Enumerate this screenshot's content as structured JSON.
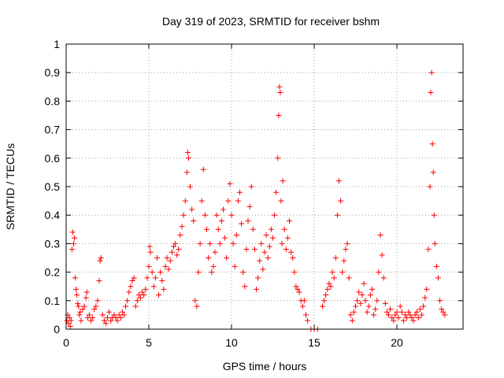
{
  "chart_data": {
    "type": "scatter",
    "title": "Day 319 of 2023, SRMTID for receiver bshm",
    "xlabel": "GPS time / hours",
    "ylabel": "SRMTID / TECUs",
    "xlim": [
      0,
      24
    ],
    "ylim": [
      0,
      1
    ],
    "xticks": [
      "0",
      "5",
      "10",
      "15",
      "20"
    ],
    "yticks": [
      "0",
      "0.1",
      "0.2",
      "0.3",
      "0.4",
      "0.5",
      "0.6",
      "0.7",
      "0.8",
      "0.9",
      "1"
    ],
    "grid": true,
    "marker": "+",
    "color": "#ff0000",
    "series": [
      {
        "name": "SRMTID",
        "points": [
          [
            0.05,
            0.03
          ],
          [
            0.1,
            0.05
          ],
          [
            0.15,
            0.02
          ],
          [
            0.2,
            0.04
          ],
          [
            0.25,
            0.01
          ],
          [
            0.3,
            0.03
          ],
          [
            0.35,
            0.28
          ],
          [
            0.4,
            0.34
          ],
          [
            0.45,
            0.3
          ],
          [
            0.5,
            0.32
          ],
          [
            0.55,
            0.18
          ],
          [
            0.6,
            0.14
          ],
          [
            0.65,
            0.12
          ],
          [
            0.7,
            0.09
          ],
          [
            0.75,
            0.08
          ],
          [
            0.8,
            0.05
          ],
          [
            0.85,
            0.06
          ],
          [
            0.9,
            0.03
          ],
          [
            1.0,
            0.07
          ],
          [
            1.1,
            0.08
          ],
          [
            1.2,
            0.11
          ],
          [
            1.25,
            0.13
          ],
          [
            1.3,
            0.04
          ],
          [
            1.4,
            0.05
          ],
          [
            1.5,
            0.03
          ],
          [
            1.6,
            0.04
          ],
          [
            1.7,
            0.07
          ],
          [
            1.8,
            0.08
          ],
          [
            1.9,
            0.1
          ],
          [
            2.0,
            0.17
          ],
          [
            2.05,
            0.24
          ],
          [
            2.1,
            0.25
          ],
          [
            2.2,
            0.05
          ],
          [
            2.3,
            0.03
          ],
          [
            2.4,
            0.02
          ],
          [
            2.5,
            0.04
          ],
          [
            2.6,
            0.06
          ],
          [
            2.7,
            0.03
          ],
          [
            2.8,
            0.04
          ],
          [
            2.9,
            0.05
          ],
          [
            3.0,
            0.04
          ],
          [
            3.1,
            0.03
          ],
          [
            3.2,
            0.05
          ],
          [
            3.3,
            0.04
          ],
          [
            3.4,
            0.06
          ],
          [
            3.5,
            0.05
          ],
          [
            3.6,
            0.08
          ],
          [
            3.7,
            0.1
          ],
          [
            3.8,
            0.13
          ],
          [
            3.9,
            0.15
          ],
          [
            4.0,
            0.17
          ],
          [
            4.1,
            0.18
          ],
          [
            4.2,
            0.08
          ],
          [
            4.3,
            0.1
          ],
          [
            4.4,
            0.12
          ],
          [
            4.5,
            0.11
          ],
          [
            4.6,
            0.13
          ],
          [
            4.7,
            0.12
          ],
          [
            4.8,
            0.14
          ],
          [
            4.9,
            0.18
          ],
          [
            5.0,
            0.22
          ],
          [
            5.05,
            0.29
          ],
          [
            5.1,
            0.27
          ],
          [
            5.2,
            0.2
          ],
          [
            5.3,
            0.15
          ],
          [
            5.4,
            0.18
          ],
          [
            5.5,
            0.25
          ],
          [
            5.6,
            0.12
          ],
          [
            5.7,
            0.2
          ],
          [
            5.8,
            0.17
          ],
          [
            5.9,
            0.14
          ],
          [
            6.0,
            0.22
          ],
          [
            6.1,
            0.25
          ],
          [
            6.2,
            0.21
          ],
          [
            6.3,
            0.24
          ],
          [
            6.4,
            0.27
          ],
          [
            6.5,
            0.29
          ],
          [
            6.6,
            0.3
          ],
          [
            6.7,
            0.26
          ],
          [
            6.8,
            0.28
          ],
          [
            6.9,
            0.33
          ],
          [
            7.0,
            0.36
          ],
          [
            7.1,
            0.4
          ],
          [
            7.2,
            0.45
          ],
          [
            7.3,
            0.55
          ],
          [
            7.35,
            0.62
          ],
          [
            7.4,
            0.6
          ],
          [
            7.5,
            0.5
          ],
          [
            7.6,
            0.42
          ],
          [
            7.7,
            0.38
          ],
          [
            7.8,
            0.1
          ],
          [
            7.9,
            0.08
          ],
          [
            8.0,
            0.2
          ],
          [
            8.1,
            0.3
          ],
          [
            8.2,
            0.45
          ],
          [
            8.3,
            0.56
          ],
          [
            8.4,
            0.4
          ],
          [
            8.5,
            0.35
          ],
          [
            8.6,
            0.25
          ],
          [
            8.7,
            0.3
          ],
          [
            8.8,
            0.2
          ],
          [
            8.9,
            0.22
          ],
          [
            9.0,
            0.27
          ],
          [
            9.1,
            0.4
          ],
          [
            9.2,
            0.35
          ],
          [
            9.3,
            0.3
          ],
          [
            9.4,
            0.38
          ],
          [
            9.5,
            0.42
          ],
          [
            9.6,
            0.32
          ],
          [
            9.7,
            0.25
          ],
          [
            9.8,
            0.45
          ],
          [
            9.9,
            0.51
          ],
          [
            10.0,
            0.4
          ],
          [
            10.1,
            0.3
          ],
          [
            10.2,
            0.22
          ],
          [
            10.3,
            0.33
          ],
          [
            10.4,
            0.45
          ],
          [
            10.5,
            0.48
          ],
          [
            10.6,
            0.37
          ],
          [
            10.7,
            0.2
          ],
          [
            10.8,
            0.15
          ],
          [
            10.9,
            0.28
          ],
          [
            11.0,
            0.38
          ],
          [
            11.1,
            0.43
          ],
          [
            11.2,
            0.5
          ],
          [
            11.3,
            0.35
          ],
          [
            11.4,
            0.28
          ],
          [
            11.5,
            0.14
          ],
          [
            11.6,
            0.18
          ],
          [
            11.7,
            0.24
          ],
          [
            11.8,
            0.3
          ],
          [
            11.9,
            0.21
          ],
          [
            12.0,
            0.27
          ],
          [
            12.1,
            0.33
          ],
          [
            12.2,
            0.25
          ],
          [
            12.3,
            0.29
          ],
          [
            12.4,
            0.35
          ],
          [
            12.5,
            0.32
          ],
          [
            12.6,
            0.4
          ],
          [
            12.7,
            0.48
          ],
          [
            12.8,
            0.6
          ],
          [
            12.85,
            0.75
          ],
          [
            12.9,
            0.85
          ],
          [
            12.95,
            0.83
          ],
          [
            13.0,
            0.45
          ],
          [
            13.05,
            0.3
          ],
          [
            13.1,
            0.52
          ],
          [
            13.2,
            0.35
          ],
          [
            13.3,
            0.28
          ],
          [
            13.4,
            0.32
          ],
          [
            13.5,
            0.38
          ],
          [
            13.6,
            0.27
          ],
          [
            13.7,
            0.25
          ],
          [
            13.8,
            0.2
          ],
          [
            13.9,
            0.15
          ],
          [
            14.0,
            0.14
          ],
          [
            14.1,
            0.13
          ],
          [
            14.2,
            0.1
          ],
          [
            14.3,
            0.08
          ],
          [
            14.4,
            0.1
          ],
          [
            14.5,
            0.05
          ],
          [
            14.6,
            0.03
          ],
          [
            14.8,
            0.0
          ],
          [
            15.0,
            0.0
          ],
          [
            15.2,
            0.0
          ],
          [
            15.5,
            0.08
          ],
          [
            15.6,
            0.1
          ],
          [
            15.7,
            0.12
          ],
          [
            15.8,
            0.14
          ],
          [
            15.9,
            0.16
          ],
          [
            16.0,
            0.15
          ],
          [
            16.1,
            0.2
          ],
          [
            16.2,
            0.18
          ],
          [
            16.3,
            0.25
          ],
          [
            16.4,
            0.4
          ],
          [
            16.5,
            0.52
          ],
          [
            16.6,
            0.45
          ],
          [
            16.7,
            0.2
          ],
          [
            16.8,
            0.24
          ],
          [
            16.9,
            0.28
          ],
          [
            17.0,
            0.3
          ],
          [
            17.1,
            0.18
          ],
          [
            17.2,
            0.05
          ],
          [
            17.3,
            0.03
          ],
          [
            17.4,
            0.06
          ],
          [
            17.5,
            0.08
          ],
          [
            17.6,
            0.1
          ],
          [
            17.7,
            0.13
          ],
          [
            17.8,
            0.09
          ],
          [
            17.9,
            0.12
          ],
          [
            18.0,
            0.16
          ],
          [
            18.1,
            0.1
          ],
          [
            18.2,
            0.06
          ],
          [
            18.3,
            0.08
          ],
          [
            18.4,
            0.12
          ],
          [
            18.5,
            0.14
          ],
          [
            18.6,
            0.05
          ],
          [
            18.7,
            0.07
          ],
          [
            18.8,
            0.1
          ],
          [
            18.9,
            0.2
          ],
          [
            19.0,
            0.33
          ],
          [
            19.1,
            0.26
          ],
          [
            19.2,
            0.18
          ],
          [
            19.3,
            0.09
          ],
          [
            19.4,
            0.06
          ],
          [
            19.5,
            0.05
          ],
          [
            19.6,
            0.07
          ],
          [
            19.7,
            0.04
          ],
          [
            19.8,
            0.03
          ],
          [
            19.9,
            0.05
          ],
          [
            20.0,
            0.06
          ],
          [
            20.1,
            0.04
          ],
          [
            20.2,
            0.08
          ],
          [
            20.3,
            0.06
          ],
          [
            20.4,
            0.03
          ],
          [
            20.5,
            0.05
          ],
          [
            20.6,
            0.04
          ],
          [
            20.7,
            0.06
          ],
          [
            20.8,
            0.05
          ],
          [
            20.9,
            0.04
          ],
          [
            21.0,
            0.03
          ],
          [
            21.1,
            0.05
          ],
          [
            21.2,
            0.06
          ],
          [
            21.3,
            0.04
          ],
          [
            21.4,
            0.07
          ],
          [
            21.5,
            0.05
          ],
          [
            21.6,
            0.08
          ],
          [
            21.7,
            0.11
          ],
          [
            21.8,
            0.14
          ],
          [
            21.9,
            0.28
          ],
          [
            22.0,
            0.5
          ],
          [
            22.05,
            0.83
          ],
          [
            22.1,
            0.9
          ],
          [
            22.15,
            0.65
          ],
          [
            22.2,
            0.55
          ],
          [
            22.25,
            0.4
          ],
          [
            22.3,
            0.3
          ],
          [
            22.4,
            0.22
          ],
          [
            22.5,
            0.18
          ],
          [
            22.6,
            0.1
          ],
          [
            22.7,
            0.07
          ],
          [
            22.8,
            0.06
          ],
          [
            22.9,
            0.05
          ]
        ]
      }
    ]
  }
}
